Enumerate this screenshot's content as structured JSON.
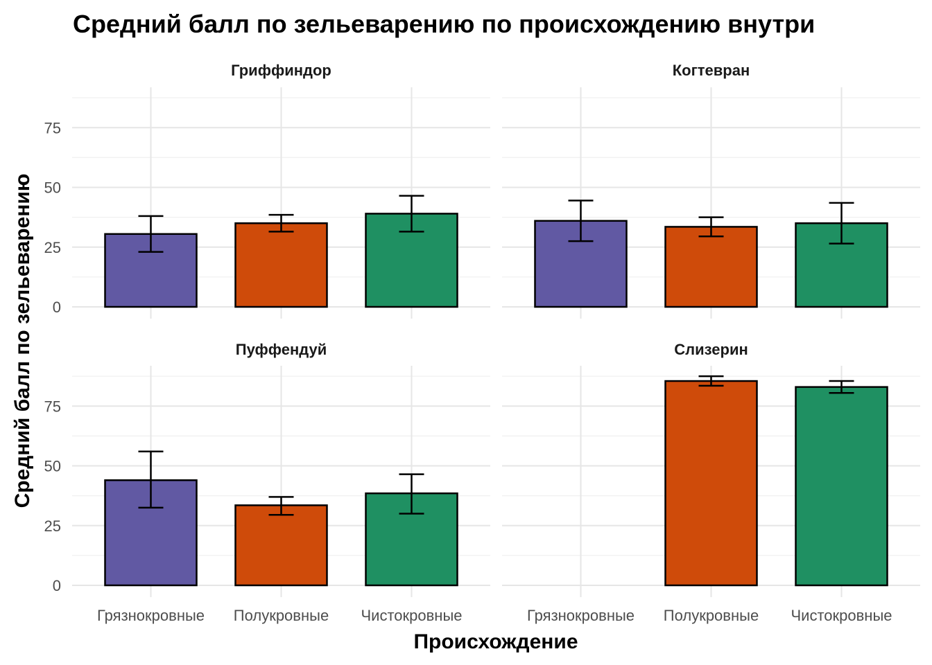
{
  "chart_data": {
    "type": "bar",
    "title": "Средний балл по зельеварению по происхождению внутри",
    "xlabel": "Происхождение",
    "ylabel": "Средний балл по зельеварению",
    "ylim": [
      0,
      92
    ],
    "yticks": [
      0,
      25,
      50,
      75
    ],
    "grid": true,
    "categories": [
      "Грязнокровные",
      "Полукровные",
      "Чистокровные"
    ],
    "colors": {
      "Грязнокровные": "#6159a3",
      "Полукровные": "#cf4b0a",
      "Чистокровные": "#1f9062"
    },
    "panels": [
      {
        "name": "Гриффиндор",
        "bars": [
          {
            "category": "Грязнокровные",
            "value": 30.5,
            "err_low": 23,
            "err_high": 38
          },
          {
            "category": "Полукровные",
            "value": 35,
            "err_low": 31.5,
            "err_high": 38.5
          },
          {
            "category": "Чистокровные",
            "value": 39,
            "err_low": 31.5,
            "err_high": 46.5
          }
        ]
      },
      {
        "name": "Когтевран",
        "bars": [
          {
            "category": "Грязнокровные",
            "value": 36,
            "err_low": 27.5,
            "err_high": 44.5
          },
          {
            "category": "Полукровные",
            "value": 33.5,
            "err_low": 29.5,
            "err_high": 37.5
          },
          {
            "category": "Чистокровные",
            "value": 35,
            "err_low": 26.5,
            "err_high": 43.5
          }
        ]
      },
      {
        "name": "Пуффендуй",
        "bars": [
          {
            "category": "Грязнокровные",
            "value": 44,
            "err_low": 32.5,
            "err_high": 56
          },
          {
            "category": "Полукровные",
            "value": 33.5,
            "err_low": 29.5,
            "err_high": 37
          },
          {
            "category": "Чистокровные",
            "value": 38.5,
            "err_low": 30,
            "err_high": 46.5
          }
        ]
      },
      {
        "name": "Слизерин",
        "bars": [
          {
            "category": "Полукровные",
            "value": 85.5,
            "err_low": 83.5,
            "err_high": 87.5
          },
          {
            "category": "Чистокровные",
            "value": 83,
            "err_low": 80.5,
            "err_high": 85.5
          }
        ]
      }
    ]
  }
}
